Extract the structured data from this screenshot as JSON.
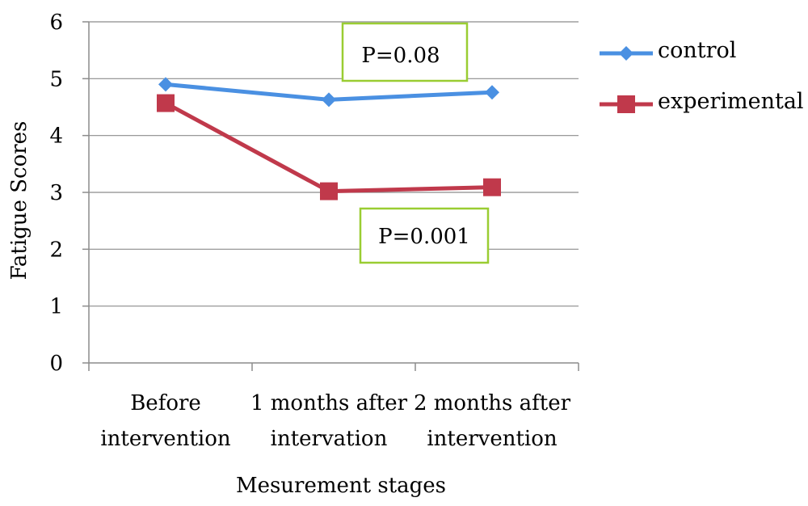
{
  "chart_data": {
    "type": "line",
    "xlabel": "Mesurement stages",
    "ylabel": "Fatigue Scores",
    "ylim": [
      0,
      6
    ],
    "yticks": [
      0,
      1,
      2,
      3,
      4,
      5,
      6
    ],
    "grid": true,
    "legend_position": "right",
    "categories": [
      [
        "Before",
        "intervention"
      ],
      [
        "1 months after",
        "intervation"
      ],
      [
        "2 months after",
        "intervention"
      ]
    ],
    "series": [
      {
        "name": "control",
        "values": [
          4.9,
          4.63,
          4.76
        ],
        "color": "#4A90E2",
        "marker": "diamond"
      },
      {
        "name": "experimental",
        "values": [
          4.57,
          3.02,
          3.09
        ],
        "color": "#C0394B",
        "marker": "square"
      }
    ],
    "annotations": [
      {
        "text": "P=0.08",
        "border_color": "#9ACD32"
      },
      {
        "text": "P=0.001",
        "border_color": "#9ACD32"
      }
    ]
  }
}
